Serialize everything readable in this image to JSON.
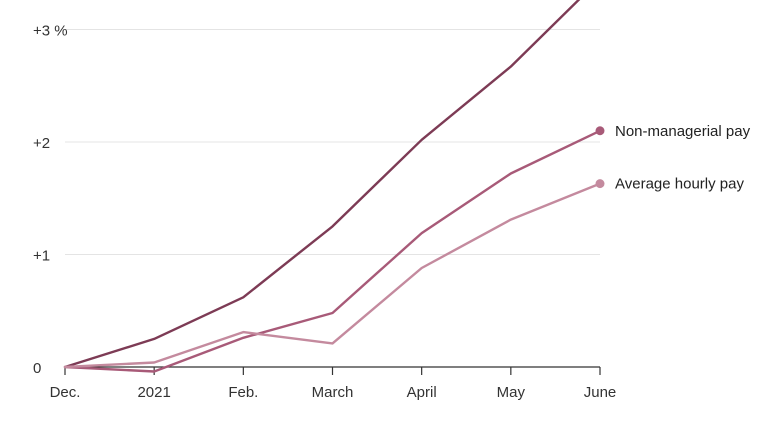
{
  "chart_data": {
    "type": "line",
    "x": [
      "Dec.",
      "2021",
      "Feb.",
      "March",
      "April",
      "May",
      "June"
    ],
    "y_ticks": [
      {
        "value": 0,
        "label": "0"
      },
      {
        "value": 1,
        "label": "+1"
      },
      {
        "value": 2,
        "label": "+2"
      },
      {
        "value": 3,
        "label": "+3 %"
      }
    ],
    "ylim": [
      0,
      3.3
    ],
    "grid": true,
    "series": [
      {
        "name": "",
        "color": "#7d3b55",
        "values": [
          0,
          0.25,
          0.62,
          1.25,
          2.02,
          2.67,
          3.45
        ],
        "end_marker": false
      },
      {
        "name": "Non-managerial pay",
        "color": "#a85a78",
        "values": [
          0,
          -0.04,
          0.26,
          0.48,
          1.19,
          1.72,
          2.1
        ],
        "end_marker": true
      },
      {
        "name": "Average hourly pay",
        "color": "#c48a9e",
        "values": [
          0,
          0.04,
          0.31,
          0.21,
          0.88,
          1.31,
          1.63
        ],
        "end_marker": true
      }
    ]
  }
}
